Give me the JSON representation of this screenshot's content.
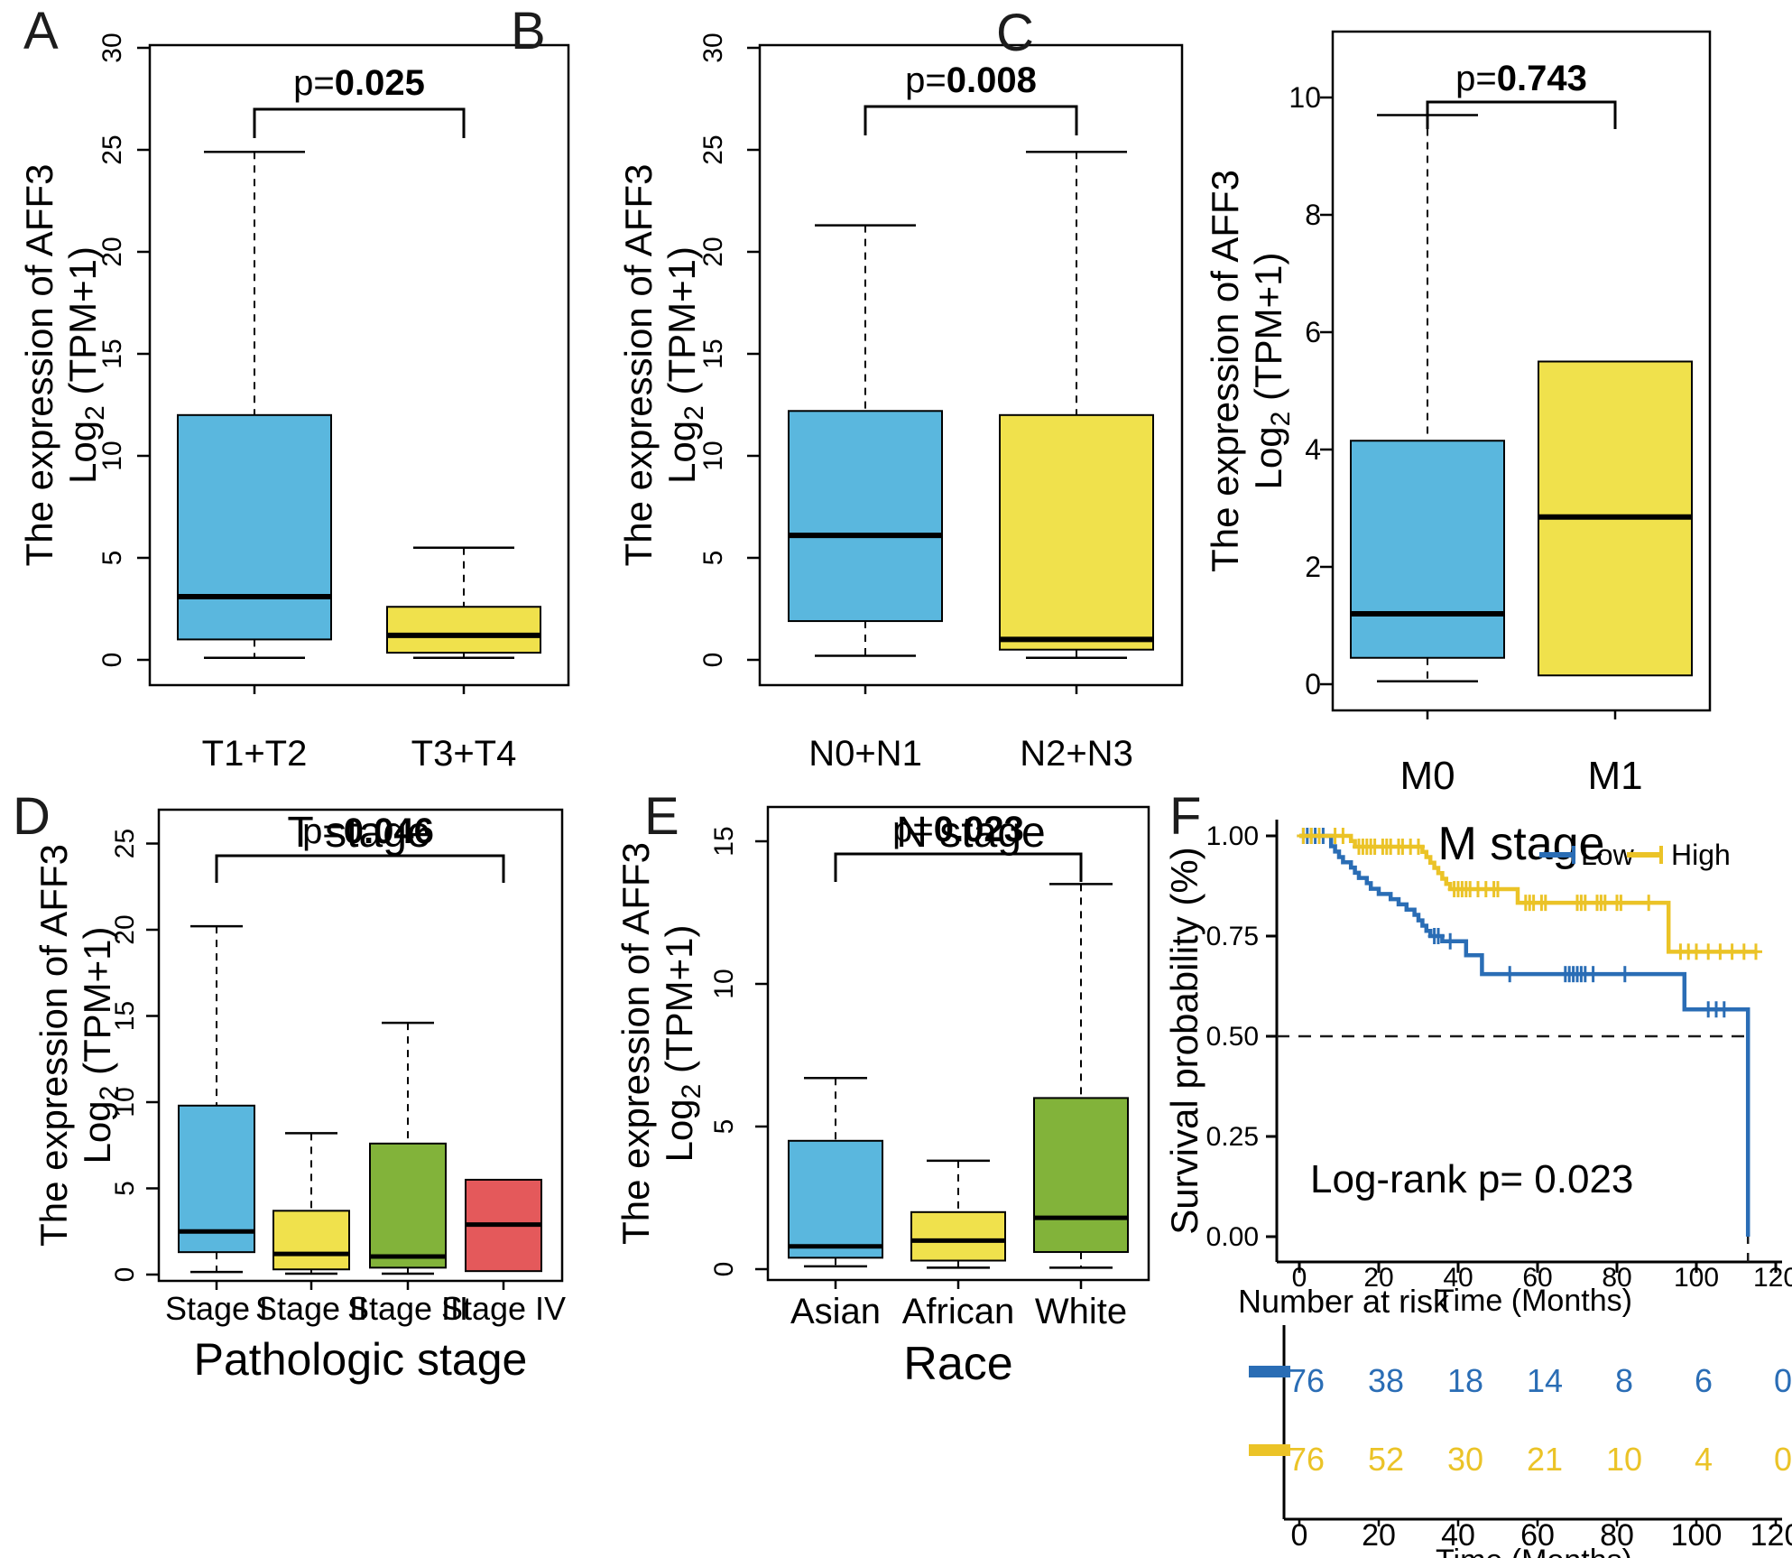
{
  "colors": {
    "box_blue": "#5AB7DE",
    "box_yellow": "#F0E14C",
    "box_green": "#82B33A",
    "box_red": "#E4595B",
    "km_low": "#2A6DB5",
    "km_high": "#EBC327",
    "axis": "#000000",
    "reference_dash": "#1a1a1a"
  },
  "ylabel": {
    "line1": "The expression of AFF3",
    "log": "Log",
    "sub": "2",
    "rest": " (TPM+1)"
  },
  "chart_data": [
    {
      "id": "A",
      "type": "box",
      "panel_label": "A",
      "p_prefix": "p=",
      "p_value": "0.025",
      "xlabel": "T stage",
      "ylim": [
        0,
        30
      ],
      "yticks": [
        0,
        5,
        10,
        15,
        20,
        25,
        30
      ],
      "categories": [
        "T1+T2",
        "T3+T4"
      ],
      "boxes": [
        {
          "category": "T1+T2",
          "color_key": "box_blue",
          "low": 0.1,
          "q1": 1.0,
          "median": 3.1,
          "q3": 12.0,
          "high": 24.9
        },
        {
          "category": "T3+T4",
          "color_key": "box_yellow",
          "low": 0.1,
          "q1": 0.35,
          "median": 1.2,
          "q3": 2.6,
          "high": 5.5
        }
      ],
      "comparison": {
        "group1": "T1+T2",
        "group2": "T3+T4"
      }
    },
    {
      "id": "B",
      "type": "box",
      "panel_label": "B",
      "p_prefix": "p=",
      "p_value": "0.008",
      "xlabel": "N stage",
      "ylim": [
        0,
        30
      ],
      "yticks": [
        0,
        5,
        10,
        15,
        20,
        25,
        30
      ],
      "categories": [
        "N0+N1",
        "N2+N3"
      ],
      "boxes": [
        {
          "category": "N0+N1",
          "color_key": "box_blue",
          "low": 0.2,
          "q1": 1.9,
          "median": 6.1,
          "q3": 12.2,
          "high": 21.3
        },
        {
          "category": "N2+N3",
          "color_key": "box_yellow",
          "low": 0.1,
          "q1": 0.5,
          "median": 1.0,
          "q3": 12.0,
          "high": 24.9
        }
      ],
      "comparison": {
        "group1": "N0+N1",
        "group2": "N2+N3"
      }
    },
    {
      "id": "C",
      "type": "box",
      "panel_label": "C",
      "p_prefix": "p=",
      "p_value": "0.743",
      "xlabel": "M stage",
      "ylim": [
        0,
        11.5
      ],
      "yticks": [
        0,
        2,
        4,
        6,
        8,
        10
      ],
      "categories": [
        "M0",
        "M1"
      ],
      "boxes": [
        {
          "category": "M0",
          "color_key": "box_blue",
          "low": 0.05,
          "q1": 0.45,
          "median": 1.2,
          "q3": 4.15,
          "high": 9.7
        },
        {
          "category": "M1",
          "color_key": "box_yellow",
          "low": 0.15,
          "q1": 0.15,
          "median": 2.85,
          "q3": 5.5,
          "high": 5.5
        }
      ],
      "comparison": {
        "group1": "M0",
        "group2": "M1"
      }
    },
    {
      "id": "D",
      "type": "box",
      "panel_label": "D",
      "p_prefix": "p=",
      "p_value": "0.046",
      "xlabel": "Pathologic stage",
      "ylim": [
        0,
        27
      ],
      "yticks": [
        0,
        5,
        10,
        15,
        20,
        25
      ],
      "categories": [
        "Stage I",
        "Stage II",
        "Stage III",
        "Stage IV"
      ],
      "boxes": [
        {
          "category": "Stage I",
          "color_key": "box_blue",
          "low": 0.15,
          "q1": 1.3,
          "median": 2.5,
          "q3": 9.8,
          "high": 20.2
        },
        {
          "category": "Stage II",
          "color_key": "box_yellow",
          "low": 0.05,
          "q1": 0.3,
          "median": 1.2,
          "q3": 3.7,
          "high": 8.2
        },
        {
          "category": "Stage III",
          "color_key": "box_green",
          "low": 0.05,
          "q1": 0.4,
          "median": 1.05,
          "q3": 7.6,
          "high": 14.6
        },
        {
          "category": "Stage IV",
          "color_key": "box_red",
          "low": 0.2,
          "q1": 0.2,
          "median": 2.9,
          "q3": 5.5,
          "high": 5.5
        }
      ],
      "comparison": {
        "group1": "Stage I",
        "group2": "Stage IV"
      }
    },
    {
      "id": "E",
      "type": "box",
      "panel_label": "E",
      "p_prefix": "p=",
      "p_value": "0.023",
      "xlabel": "Race",
      "ylim": [
        0,
        16
      ],
      "yticks": [
        0,
        5,
        10,
        15
      ],
      "categories": [
        "Asian",
        "African",
        "White"
      ],
      "boxes": [
        {
          "category": "Asian",
          "color_key": "box_blue",
          "low": 0.1,
          "q1": 0.4,
          "median": 0.8,
          "q3": 4.5,
          "high": 6.7
        },
        {
          "category": "African",
          "color_key": "box_yellow",
          "low": 0.05,
          "q1": 0.3,
          "median": 1.0,
          "q3": 2.0,
          "high": 3.8
        },
        {
          "category": "White",
          "color_key": "box_green",
          "low": 0.05,
          "q1": 0.6,
          "median": 1.8,
          "q3": 6.0,
          "high": 13.5
        }
      ],
      "comparison": {
        "group1": "Asian",
        "group2": "White"
      }
    },
    {
      "id": "F",
      "type": "km",
      "panel_label": "F",
      "xlabel": "Time (Months)",
      "ylabel": "Survival probability (%)",
      "xticks": [
        0,
        20,
        40,
        60,
        80,
        100,
        120
      ],
      "ytick_labels": [
        "0.00",
        "0.25",
        "0.50",
        "0.75",
        "1.00"
      ],
      "logrank": "Log-rank p= 0.023",
      "reference_level": 0.5,
      "reference_time": 113,
      "legend": [
        {
          "label": "Low",
          "color_key": "km_low"
        },
        {
          "label": "High",
          "color_key": "km_high"
        }
      ],
      "series": [
        {
          "name": "Low",
          "color_key": "km_low",
          "end_time": 113,
          "steps": [
            [
              0,
              1.0
            ],
            [
              8,
              0.974
            ],
            [
              9,
              0.961
            ],
            [
              10,
              0.947
            ],
            [
              11,
              0.934
            ],
            [
              13,
              0.921
            ],
            [
              14,
              0.908
            ],
            [
              15,
              0.895
            ],
            [
              17,
              0.882
            ],
            [
              18,
              0.868
            ],
            [
              20,
              0.855
            ],
            [
              23,
              0.842
            ],
            [
              25,
              0.829
            ],
            [
              27,
              0.816
            ],
            [
              29,
              0.803
            ],
            [
              30,
              0.789
            ],
            [
              31,
              0.776
            ],
            [
              32,
              0.763
            ],
            [
              33,
              0.75
            ],
            [
              36,
              0.737
            ],
            [
              42,
              0.702
            ],
            [
              46,
              0.655
            ],
            [
              97,
              0.567
            ],
            [
              113,
              0.0
            ]
          ],
          "censors": [
            [
              1,
              1.0
            ],
            [
              2,
              1.0
            ],
            [
              3,
              1.0
            ],
            [
              4,
              1.0
            ],
            [
              5,
              1.0
            ],
            [
              6,
              1.0
            ],
            [
              34,
              0.75
            ],
            [
              35,
              0.75
            ],
            [
              38,
              0.737
            ],
            [
              53,
              0.655
            ],
            [
              67,
              0.655
            ],
            [
              68,
              0.655
            ],
            [
              69,
              0.655
            ],
            [
              70,
              0.655
            ],
            [
              71,
              0.655
            ],
            [
              72,
              0.655
            ],
            [
              74,
              0.655
            ],
            [
              82,
              0.655
            ],
            [
              103,
              0.567
            ],
            [
              105,
              0.567
            ],
            [
              107,
              0.567
            ]
          ]
        },
        {
          "name": "High",
          "color_key": "km_high",
          "end_time": 115,
          "steps": [
            [
              0,
              1.0
            ],
            [
              13,
              0.987
            ],
            [
              14,
              0.973
            ],
            [
              31,
              0.96
            ],
            [
              32,
              0.947
            ],
            [
              33,
              0.933
            ],
            [
              34,
              0.92
            ],
            [
              35,
              0.907
            ],
            [
              36,
              0.893
            ],
            [
              37,
              0.88
            ],
            [
              38,
              0.867
            ],
            [
              55,
              0.833
            ],
            [
              93,
              0.711
            ]
          ],
          "censors": [
            [
              1,
              1.0
            ],
            [
              3,
              1.0
            ],
            [
              5,
              1.0
            ],
            [
              9,
              1.0
            ],
            [
              11,
              1.0
            ],
            [
              15,
              0.973
            ],
            [
              16,
              0.973
            ],
            [
              17,
              0.973
            ],
            [
              18,
              0.973
            ],
            [
              19,
              0.973
            ],
            [
              21,
              0.973
            ],
            [
              22,
              0.973
            ],
            [
              23,
              0.973
            ],
            [
              25,
              0.973
            ],
            [
              26,
              0.973
            ],
            [
              28,
              0.973
            ],
            [
              30,
              0.973
            ],
            [
              39,
              0.867
            ],
            [
              40,
              0.867
            ],
            [
              41,
              0.867
            ],
            [
              42,
              0.867
            ],
            [
              43,
              0.867
            ],
            [
              45,
              0.867
            ],
            [
              47,
              0.867
            ],
            [
              49,
              0.867
            ],
            [
              50,
              0.867
            ],
            [
              57,
              0.833
            ],
            [
              58,
              0.833
            ],
            [
              59,
              0.833
            ],
            [
              61,
              0.833
            ],
            [
              62,
              0.833
            ],
            [
              70,
              0.833
            ],
            [
              71,
              0.833
            ],
            [
              72,
              0.833
            ],
            [
              75,
              0.833
            ],
            [
              76,
              0.833
            ],
            [
              77,
              0.833
            ],
            [
              80,
              0.833
            ],
            [
              81,
              0.833
            ],
            [
              88,
              0.833
            ],
            [
              96,
              0.711
            ],
            [
              98,
              0.711
            ],
            [
              100,
              0.711
            ],
            [
              103,
              0.711
            ],
            [
              106,
              0.711
            ],
            [
              109,
              0.711
            ],
            [
              112,
              0.711
            ],
            [
              115,
              0.711
            ]
          ]
        }
      ],
      "risk_table": {
        "title": "Number at risk",
        "xlabel": "Time (Months)",
        "times": [
          0,
          20,
          40,
          60,
          80,
          100,
          120
        ],
        "rows": [
          {
            "name": "Low",
            "color_key": "km_low",
            "values": [
              76,
              38,
              18,
              14,
              8,
              6,
              0
            ]
          },
          {
            "name": "High",
            "color_key": "km_high",
            "values": [
              76,
              52,
              30,
              21,
              10,
              4,
              0
            ]
          }
        ]
      }
    }
  ]
}
